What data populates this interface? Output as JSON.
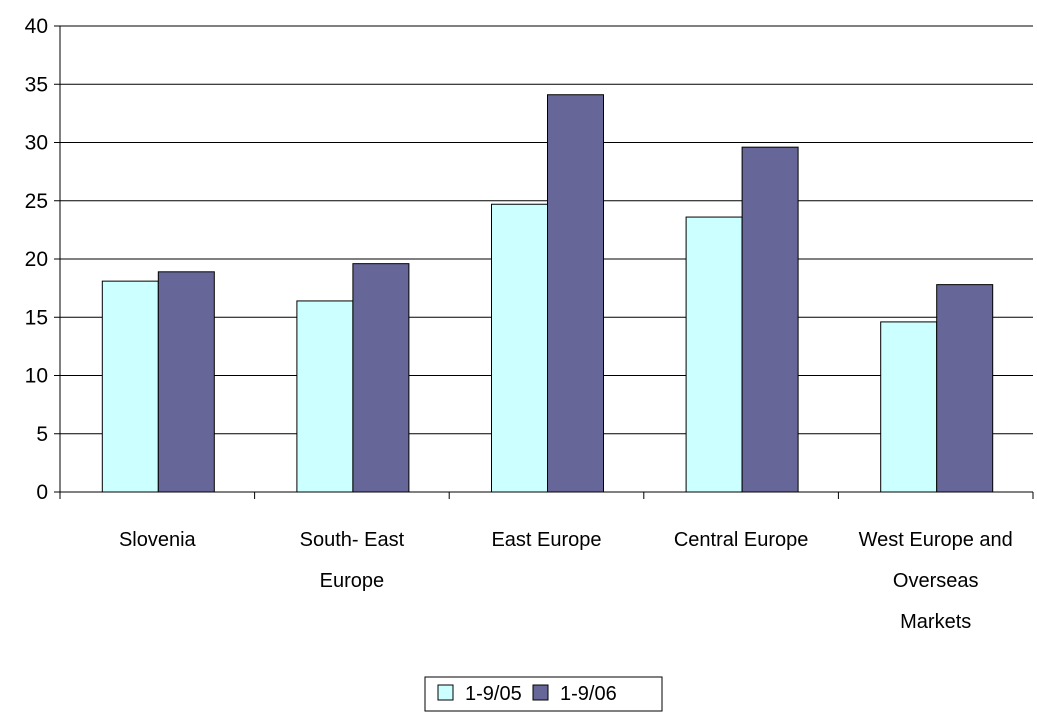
{
  "chart_data": {
    "type": "bar",
    "categories": [
      [
        "Slovenia"
      ],
      [
        "South- East",
        "Europe"
      ],
      [
        "East Europe"
      ],
      [
        "Central Europe"
      ],
      [
        "West Europe and",
        "Overseas",
        "Markets"
      ]
    ],
    "series": [
      {
        "name": "1-9/05",
        "values": [
          18.1,
          16.4,
          24.7,
          23.6,
          14.6
        ],
        "color": "#ccffff"
      },
      {
        "name": "1-9/06",
        "values": [
          18.9,
          19.6,
          34.1,
          29.6,
          17.8
        ],
        "color": "#666699"
      }
    ],
    "ylim": [
      0,
      40
    ],
    "yticks": [
      0,
      5,
      10,
      15,
      20,
      25,
      30,
      35,
      40
    ],
    "grid": true,
    "legend_position": "bottom-center"
  }
}
